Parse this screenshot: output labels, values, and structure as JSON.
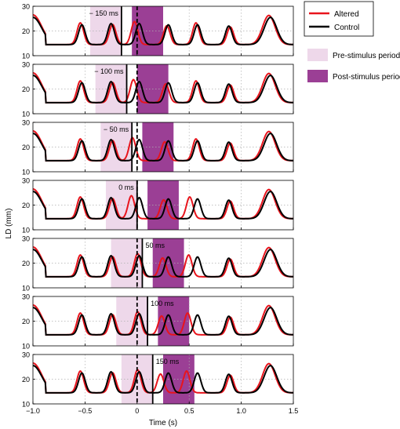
{
  "chart_data": {
    "type": "line",
    "xlabel": "Time (s)",
    "ylabel": "LD (mm)",
    "xlim": [
      -1.0,
      1.5
    ],
    "ylim": [
      10,
      30
    ],
    "x_ticks": [
      "−1.0",
      "−0.5",
      "0",
      "0.5",
      "1.0",
      "1.5"
    ],
    "y_ticks": [
      "10",
      "20",
      "30"
    ],
    "legend": {
      "placement": "top-right",
      "series": [
        {
          "name": "Altered",
          "color": "#e8141c"
        },
        {
          "name": "Control",
          "color": "#000000"
        }
      ],
      "periods": [
        {
          "name": "Pre-stimulus period",
          "color": "#eed8ea"
        },
        {
          "name": "Post-stimulus period",
          "color": "#9b3f95"
        }
      ]
    },
    "grid": "dotted",
    "stimulus_reference_time": 0,
    "panels": [
      {
        "label": "− 150 ms",
        "delay": -0.15,
        "pre_period": [
          -0.45,
          -0.15
        ],
        "post_period": [
          -0.05,
          0.25
        ]
      },
      {
        "label": "− 100 ms",
        "delay": -0.1,
        "pre_period": [
          -0.4,
          -0.1
        ],
        "post_period": [
          0.0,
          0.3
        ]
      },
      {
        "label": "− 50 ms",
        "delay": -0.05,
        "pre_period": [
          -0.35,
          -0.05
        ],
        "post_period": [
          0.05,
          0.35
        ]
      },
      {
        "label": "0 ms",
        "delay": 0.0,
        "pre_period": [
          -0.3,
          0.0
        ],
        "post_period": [
          0.1,
          0.4
        ]
      },
      {
        "label": "50 ms",
        "delay": 0.05,
        "pre_period": [
          -0.25,
          0.05
        ],
        "post_period": [
          0.15,
          0.45
        ]
      },
      {
        "label": "100 ms",
        "delay": 0.1,
        "pre_period": [
          -0.2,
          0.1
        ],
        "post_period": [
          0.2,
          0.5
        ]
      },
      {
        "label": "150 ms",
        "delay": 0.15,
        "pre_period": [
          -0.15,
          0.15
        ],
        "post_period": [
          0.25,
          0.55
        ]
      }
    ],
    "control_peaks": [
      {
        "t": -0.53,
        "amp": 8.0,
        "w": 0.045
      },
      {
        "t": -0.25,
        "amp": 8.5,
        "w": 0.045
      },
      {
        "t": 0.02,
        "amp": 8.5,
        "w": 0.045
      },
      {
        "t": 0.3,
        "amp": 8.0,
        "w": 0.045
      },
      {
        "t": 0.58,
        "amp": 8.0,
        "w": 0.045
      },
      {
        "t": 0.88,
        "amp": 7.5,
        "w": 0.045
      },
      {
        "t": 1.28,
        "amp": 11.0,
        "w": 0.085
      }
    ]
  }
}
